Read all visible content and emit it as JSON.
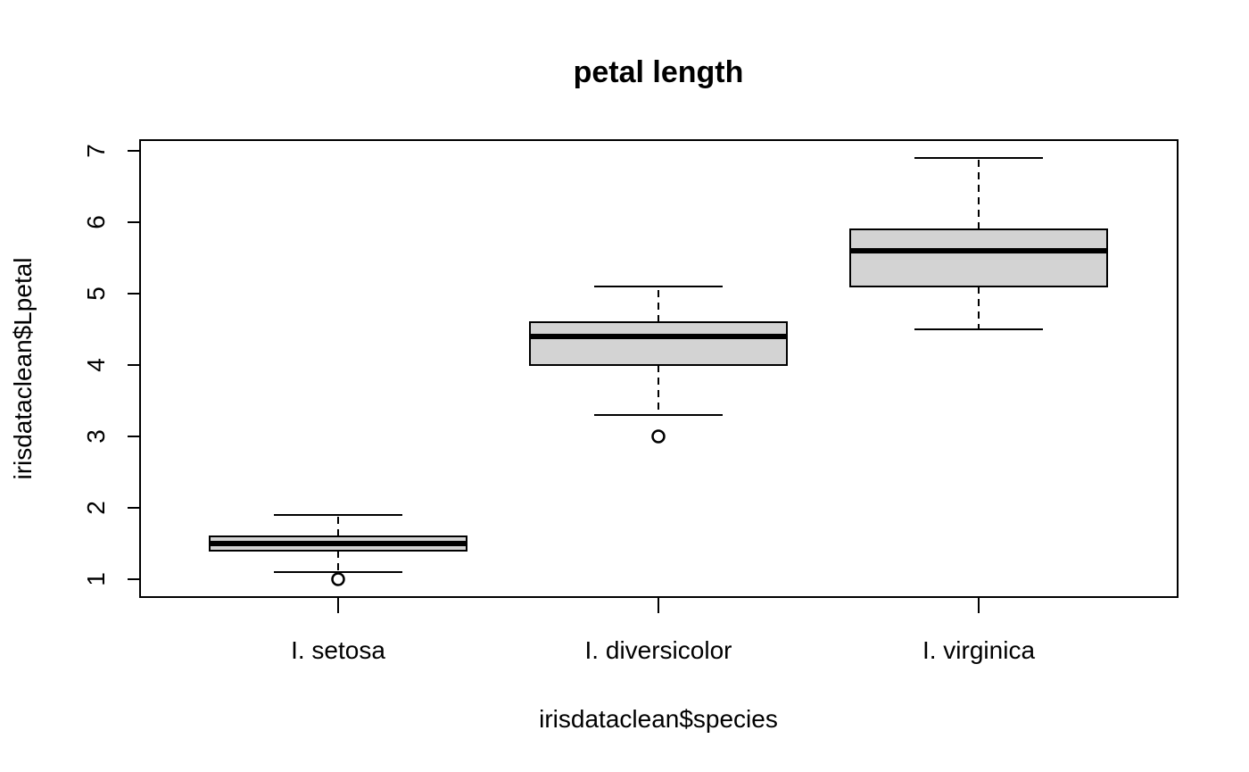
{
  "chart_data": {
    "type": "boxplot",
    "title": "petal length",
    "xlabel": "irisdataclean$species",
    "ylabel": "irisdataclean$Lpetal",
    "ylim": [
      0.75,
      7.15
    ],
    "yticks": [
      1,
      2,
      3,
      4,
      5,
      6,
      7
    ],
    "grid": false,
    "colors": {
      "box_fill": "#d3d3d3",
      "stroke": "#000000"
    },
    "categories": [
      "I. setosa",
      "I. diversicolor",
      "I. virginica"
    ],
    "series": [
      {
        "category": "I. setosa",
        "whisker_low": 1.1,
        "q1": 1.4,
        "median": 1.5,
        "q3": 1.6,
        "whisker_high": 1.9,
        "outliers": [
          1.0
        ]
      },
      {
        "category": "I. diversicolor",
        "whisker_low": 3.3,
        "q1": 4.0,
        "median": 4.4,
        "q3": 4.6,
        "whisker_high": 5.1,
        "outliers": [
          3.0
        ]
      },
      {
        "category": "I. virginica",
        "whisker_low": 4.5,
        "q1": 5.1,
        "median": 5.6,
        "q3": 5.9,
        "whisker_high": 6.9,
        "outliers": []
      }
    ]
  }
}
